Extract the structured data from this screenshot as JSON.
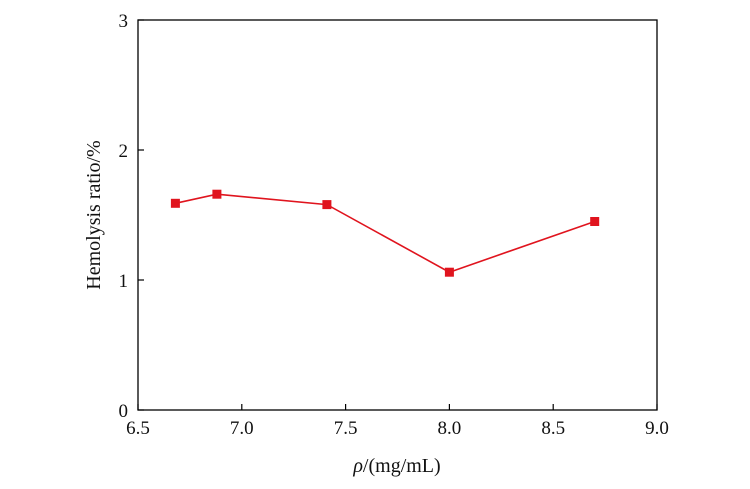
{
  "chart_data": {
    "type": "line",
    "title": "",
    "xlabel": "ρ/(mg/mL)",
    "ylabel": "Hemolysis ratio/%",
    "xlim": [
      6.5,
      9.0
    ],
    "ylim": [
      0,
      3
    ],
    "x_ticks": [
      "6.5",
      "7.0",
      "7.5",
      "8.0",
      "8.5",
      "9.0"
    ],
    "y_ticks": [
      "0",
      "1",
      "2",
      "3"
    ],
    "grid": false,
    "legend": "none",
    "marker": "square",
    "color": "#e0141e",
    "series": [
      {
        "x": [
          6.68,
          6.88,
          7.41,
          8.0,
          8.7
        ],
        "y": [
          1.59,
          1.66,
          1.58,
          1.06,
          1.45
        ]
      }
    ]
  }
}
